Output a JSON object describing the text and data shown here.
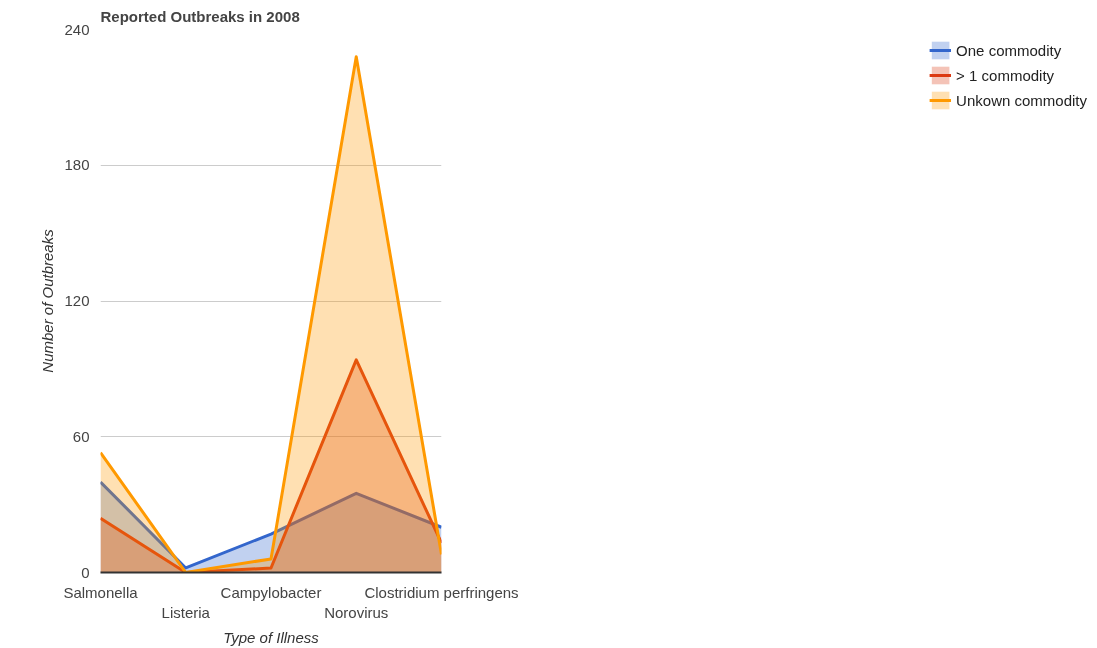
{
  "chart_data": {
    "type": "area",
    "title": "Reported Outbreaks in 2008",
    "xlabel": "Type of Illness",
    "ylabel": "Number of Outbreaks",
    "categories": [
      "Salmonella",
      "Listeria",
      "Campylobacter",
      "Norovirus",
      "Clostridium perfringens"
    ],
    "series": [
      {
        "name": "One commodity",
        "color": "#3366cc",
        "values": [
          40,
          2,
          17,
          35,
          20
        ]
      },
      {
        "name": "> 1 commodity",
        "color": "#dc3912",
        "values": [
          24,
          0,
          2,
          94,
          13
        ]
      },
      {
        "name": "Unkown commodity",
        "color": "#ff9900",
        "values": [
          53,
          0,
          6,
          228,
          8
        ]
      }
    ],
    "ylim": [
      0,
      240
    ],
    "yticks": [
      0,
      60,
      120,
      180,
      240
    ],
    "grid": "y",
    "legend": "right"
  }
}
